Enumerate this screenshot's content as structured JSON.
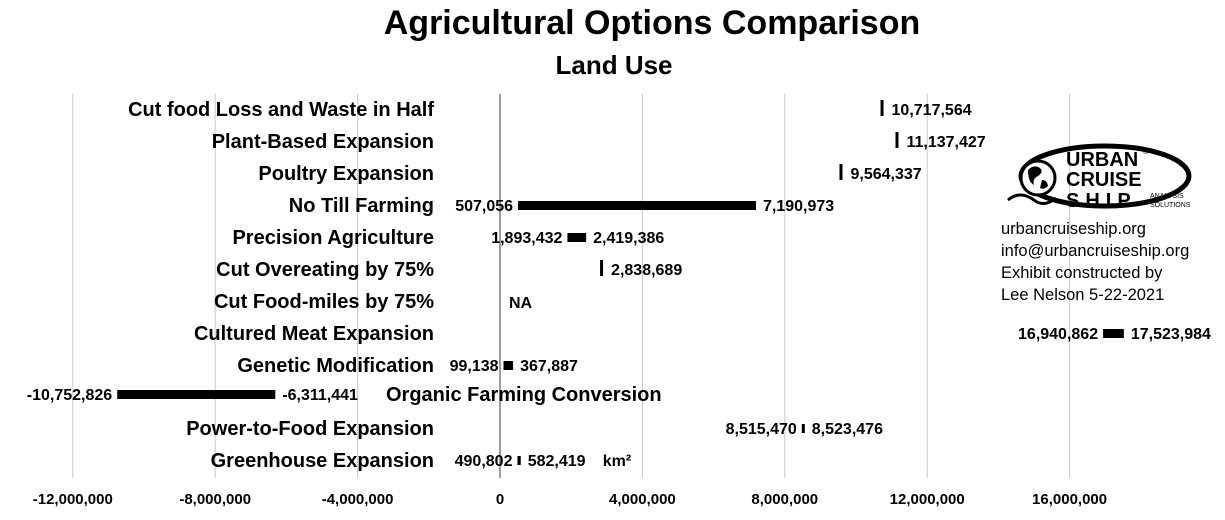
{
  "chart_data": {
    "type": "bar",
    "title": "Agricultural Options Comparison",
    "subtitle": "Land Use",
    "unit": "km²",
    "xlim": [
      -12000000,
      17600000
    ],
    "xticks": [
      "-12,000,000",
      "-8,000,000",
      "-4,000,000",
      "0",
      "4,000,000",
      "8,000,000",
      "12,000,000",
      "16,000,000"
    ],
    "grid": true,
    "bars": [
      {
        "category": "Cut food Loss and Waste in Half",
        "low": null,
        "high": 10717564,
        "high_label": "10,717,564"
      },
      {
        "category": "Plant-Based Expansion",
        "low": null,
        "high": 11137427,
        "high_label": "11,137,427"
      },
      {
        "category": "Poultry Expansion",
        "low": null,
        "high": 9564337,
        "high_label": "9,564,337"
      },
      {
        "category": "No Till Farming",
        "low": 507056,
        "high": 7190973,
        "low_label": "507,056",
        "high_label": "7,190,973"
      },
      {
        "category": "Precision Agriculture",
        "low": 1893432,
        "high": 2419386,
        "low_label": "1,893,432",
        "high_label": "2,419,386"
      },
      {
        "category": "Cut Overeating by 75%",
        "low": null,
        "high": 2838689,
        "high_label": "2,838,689"
      },
      {
        "category": "Cut Food-miles by 75%",
        "low": null,
        "high": null,
        "na_label": "NA"
      },
      {
        "category": "Cultured Meat Expansion",
        "low": 16940862,
        "high": 17523984,
        "low_label": "16,940,862",
        "high_label": "17,523,984"
      },
      {
        "category": "Genetic Modification",
        "low": 99138,
        "high": 367887,
        "low_label": "99,138",
        "high_label": "367,887"
      },
      {
        "category": "Organic Farming Conversion",
        "low": -10752826,
        "high": -6311441,
        "low_label": "-10,752,826",
        "high_label": "-6,311,441"
      },
      {
        "category": "Power-to-Food Expansion",
        "low": 8515470,
        "high": 8523476,
        "low_label": "8,515,470",
        "high_label": "8,523,476"
      },
      {
        "category": "Greenhouse Expansion",
        "low": 490802,
        "high": 582419,
        "low_label": "490,802",
        "high_label": "582,419"
      }
    ]
  },
  "logo": {
    "line1": "URBAN",
    "line2": "CRUISE",
    "line3": "SHIP",
    "tag1": "ANALYSIS",
    "tag2": "SOLUTIONS",
    "mark": "®"
  },
  "contact": {
    "website": "urbancruiseship.org",
    "email": "info@urbancruiseship.org",
    "credit_line1": "Exhibit constructed by",
    "credit_line2": "Lee Nelson 5-22-2021"
  }
}
